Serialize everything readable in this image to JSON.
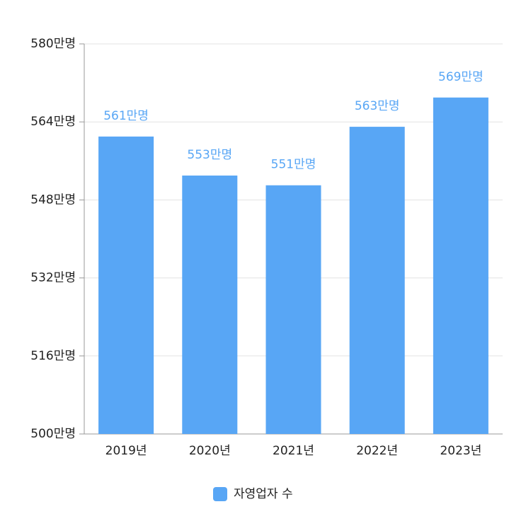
{
  "chart_data": {
    "type": "bar",
    "categories": [
      "2019년",
      "2020년",
      "2021년",
      "2022년",
      "2023년"
    ],
    "series": [
      {
        "name": "자영업자 수",
        "color": "#58a6f5",
        "values": [
          561,
          553,
          551,
          563,
          569
        ],
        "value_labels": [
          "561만명",
          "553만명",
          "551만명",
          "563만명",
          "569만명"
        ]
      }
    ],
    "ylim": [
      500,
      580
    ],
    "yticks": [
      {
        "value": 500,
        "label": "500만명"
      },
      {
        "value": 516,
        "label": "516만명"
      },
      {
        "value": 532,
        "label": "532만명"
      },
      {
        "value": 548,
        "label": "548만명"
      },
      {
        "value": 564,
        "label": "564만명"
      },
      {
        "value": 580,
        "label": "580만명"
      }
    ],
    "grid": true,
    "legend": "bottom"
  }
}
